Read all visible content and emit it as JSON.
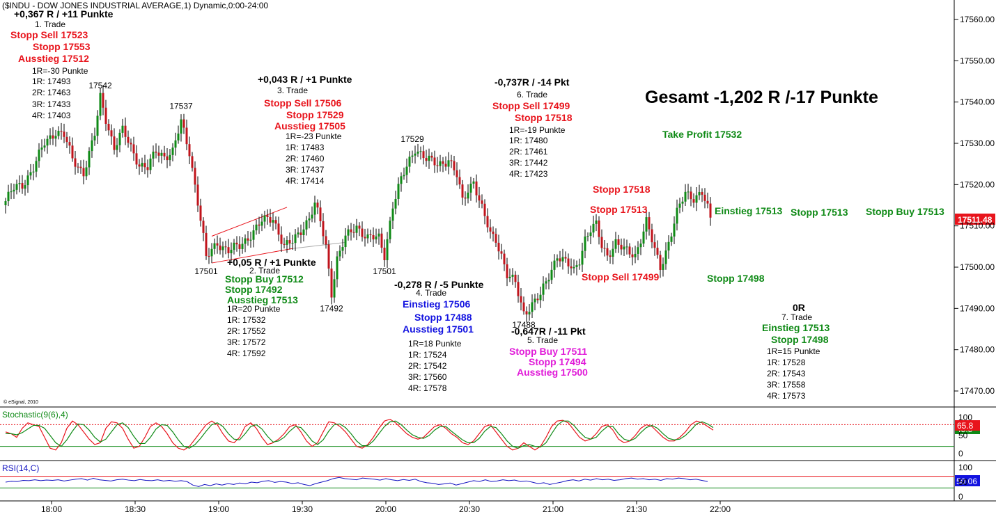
{
  "header": {
    "title": "($INDU - DOW JONES INDUSTRIAL AVERAGE,1) Dynamic,0:00-24:00"
  },
  "copyright": "© eSignal, 2010",
  "colors": {
    "up": "#0f8a16",
    "down": "#c0141c",
    "resistance": "#e8141c",
    "support": "#0f8a16",
    "stoch_k": "#e8141c",
    "stoch_d": "#0f8a16",
    "rsi": "#1212c0"
  },
  "total": "Gesamt -1,202 R /-17 Punkte",
  "trades": {
    "t1": {
      "result": "+0,367 R / +11 Punkte",
      "num": "1. Trade",
      "l1": "Stopp Sell 17523",
      "l2": "Stopp 17553",
      "l3": "Ausstieg 17512",
      "r1": "1R=-30 Punkte",
      "lv1": "1R: 17493",
      "lv2": "2R: 17463",
      "lv3": "3R: 17433",
      "lv4": "4R: 17403"
    },
    "t2": {
      "result": "+0,05 R / +1 Punkte",
      "num": "2. Trade",
      "l1": "Stopp Buy 17512",
      "l2": "Stopp 17492",
      "l3": "Ausstieg 17513",
      "r1": "1R=20 Punkte",
      "lv1": "1R: 17532",
      "lv2": "2R: 17552",
      "lv3": "3R: 17572",
      "lv4": "4R: 17592"
    },
    "t3": {
      "result": "+0,043 R / +1 Punkte",
      "num": "3. Trade",
      "l1": "Stopp Sell 17506",
      "l2": "Stopp 17529",
      "l3": "Ausstieg 17505",
      "r1": "1R=-23 Punkte",
      "lv1": "1R: 17483",
      "lv2": "2R: 17460",
      "lv3": "3R: 17437",
      "lv4": "4R: 17414"
    },
    "t4": {
      "result": "-0,278 R / -5 Punkte",
      "num": "4. Trade",
      "l1": "Einstieg 17506",
      "l2": "Stopp 17488",
      "l3": "Ausstieg 17501",
      "r1": "1R=18 Punkte",
      "lv1": "1R: 17524",
      "lv2": "2R: 17542",
      "lv3": "3R: 17560",
      "lv4": "4R: 17578"
    },
    "t5": {
      "result": "-0,647R / -11 Pkt",
      "num": "5. Trade",
      "l1": "Stopp Buy 17511",
      "l2": "Stopp 17494",
      "l3": "Ausstieg 17500"
    },
    "t6": {
      "result": "-0,737R / -14 Pkt",
      "num": "6. Trade",
      "l1": "Stopp Sell 17499",
      "l2": "Stopp 17518",
      "r1": "1R=-19 Punkte",
      "lv1": "1R: 17480",
      "lv2": "2R: 17461",
      "lv3": "3R: 17442",
      "lv4": "4R: 17423"
    },
    "t7": {
      "result": "0R",
      "num": "7. Trade",
      "l1": "Einstieg 17513",
      "l2": "Stopp 17498",
      "r1": "1R=15 Punkte",
      "lv1": "1R: 17528",
      "lv2": "2R: 17543",
      "lv3": "3R: 17558",
      "lv4": "4R: 17573"
    }
  },
  "right_labels": {
    "take_profit": "Take Profit 17532",
    "stopp_17518": "Stopp 17518",
    "stopp_17513": "Stopp 17513",
    "stopp_sell_17499": "Stopp Sell 17499",
    "einstieg_17513": "Einstieg 17513",
    "stopp_17513_b": "Stopp 17513",
    "stopp_buy_17513": "Stopp Buy 17513",
    "stopp_17498": "Stopp 17498"
  },
  "chart_data": [
    {
      "type": "candlestick",
      "title": "($INDU - DOW JONES INDUSTRIAL AVERAGE,1) Dynamic,0:00-24:00",
      "x_ticks": [
        "18:00",
        "18:30",
        "19:00",
        "19:30",
        "20:00",
        "20:30",
        "21:00",
        "21:30",
        "22:00"
      ],
      "y_ticks": [
        17560,
        17550,
        17540,
        17530,
        17520,
        17510,
        17500,
        17490,
        17480,
        17470
      ],
      "ylim": [
        17465,
        17563
      ],
      "last_price": "17511.48",
      "price_labels": [
        {
          "label": "17542",
          "x": 34,
          "y": 17542
        },
        {
          "label": "17537",
          "x": 63,
          "y": 17537
        },
        {
          "label": "17501",
          "x": 72,
          "y": 17501
        },
        {
          "label": "17492",
          "x": 117,
          "y": 17492
        },
        {
          "label": "17501",
          "x": 136,
          "y": 17501
        },
        {
          "label": "17529",
          "x": 146,
          "y": 17529
        },
        {
          "label": "17488",
          "x": 186,
          "y": 17488
        }
      ],
      "close_path": [
        [
          0,
          17516
        ],
        [
          3,
          17519
        ],
        [
          6,
          17520
        ],
        [
          10,
          17524
        ],
        [
          14,
          17530
        ],
        [
          18,
          17533
        ],
        [
          21,
          17532
        ],
        [
          24,
          17526
        ],
        [
          28,
          17523
        ],
        [
          32,
          17532
        ],
        [
          34,
          17541
        ],
        [
          36,
          17536
        ],
        [
          39,
          17529
        ],
        [
          42,
          17533
        ],
        [
          45,
          17529
        ],
        [
          48,
          17525
        ],
        [
          51,
          17524
        ],
        [
          54,
          17528
        ],
        [
          57,
          17527
        ],
        [
          60,
          17528
        ],
        [
          63,
          17535
        ],
        [
          66,
          17528
        ],
        [
          69,
          17516
        ],
        [
          71,
          17507
        ],
        [
          72,
          17502
        ],
        [
          76,
          17506
        ],
        [
          80,
          17504
        ],
        [
          84,
          17505
        ],
        [
          88,
          17508
        ],
        [
          92,
          17511
        ],
        [
          96,
          17512
        ],
        [
          100,
          17505
        ],
        [
          103,
          17506
        ],
        [
          106,
          17509
        ],
        [
          109,
          17512
        ],
        [
          111,
          17515
        ],
        [
          113,
          17511
        ],
        [
          115,
          17505
        ],
        [
          117,
          17494
        ],
        [
          119,
          17502
        ],
        [
          122,
          17507
        ],
        [
          126,
          17510
        ],
        [
          130,
          17507
        ],
        [
          134,
          17507
        ],
        [
          136,
          17503
        ],
        [
          139,
          17515
        ],
        [
          142,
          17521
        ],
        [
          145,
          17526
        ],
        [
          147,
          17529
        ],
        [
          151,
          17526
        ],
        [
          155,
          17525
        ],
        [
          159,
          17526
        ],
        [
          162,
          17522
        ],
        [
          164,
          17516
        ],
        [
          166,
          17519
        ],
        [
          168,
          17521
        ],
        [
          170,
          17516
        ],
        [
          172,
          17512
        ],
        [
          174,
          17508
        ],
        [
          176,
          17507
        ],
        [
          178,
          17503
        ],
        [
          180,
          17498
        ],
        [
          183,
          17496
        ],
        [
          186,
          17489
        ],
        [
          189,
          17491
        ],
        [
          192,
          17493
        ],
        [
          195,
          17498
        ],
        [
          198,
          17503
        ],
        [
          201,
          17501
        ],
        [
          204,
          17499
        ],
        [
          206,
          17502
        ],
        [
          208,
          17507
        ],
        [
          210,
          17509
        ],
        [
          212,
          17510
        ],
        [
          214,
          17505
        ],
        [
          216,
          17503
        ],
        [
          219,
          17506
        ],
        [
          222,
          17504
        ],
        [
          226,
          17503
        ],
        [
          228,
          17507
        ],
        [
          230,
          17511
        ],
        [
          233,
          17504
        ],
        [
          235,
          17500
        ],
        [
          238,
          17506
        ],
        [
          241,
          17513
        ],
        [
          244,
          17518
        ],
        [
          247,
          17517
        ],
        [
          250,
          17518
        ],
        [
          253,
          17512
        ]
      ],
      "trendlines": [
        {
          "name": "resistance",
          "from": [
            74,
            17507.5
          ],
          "to": [
            101,
            17514.5
          ]
        },
        {
          "name": "support",
          "from": [
            74,
            17501
          ],
          "to": [
            103,
            17504.5
          ]
        },
        {
          "name": "support-extension",
          "from": [
            103,
            17504.5
          ],
          "to": [
            122,
            17506
          ]
        }
      ]
    },
    {
      "type": "line",
      "title": "Stochastic(9(6),4)",
      "ylim": [
        0,
        100
      ],
      "y_ticks": [
        100,
        50,
        0
      ],
      "levels": [
        80,
        20
      ],
      "last_values": [
        "65.8",
        "45.5"
      ],
      "series": [
        {
          "name": "%K",
          "values": [
            60,
            55,
            45,
            70,
            85,
            80,
            75,
            45,
            15,
            10,
            30,
            70,
            90,
            80,
            60,
            40,
            25,
            30,
            70,
            88,
            85,
            70,
            40,
            15,
            20,
            45,
            75,
            85,
            75,
            55,
            30,
            15,
            10,
            20,
            40,
            60,
            80,
            90,
            80,
            55,
            35,
            30,
            45,
            75,
            85,
            70,
            45,
            25,
            30,
            40,
            55,
            75,
            80,
            60,
            35,
            20,
            30,
            60,
            88,
            85,
            75,
            60,
            40,
            20,
            15,
            25,
            45,
            70,
            90,
            95,
            85,
            70,
            55,
            45,
            40,
            45,
            60,
            75,
            80,
            70,
            55,
            45,
            30,
            25,
            35,
            55,
            75,
            80,
            60,
            40,
            20,
            10,
            15,
            30,
            20,
            10,
            20,
            45,
            75,
            90,
            92,
            85,
            65,
            45,
            35,
            40,
            55,
            75,
            80,
            65,
            40,
            30,
            35,
            50,
            70,
            80,
            75,
            60,
            45,
            35,
            35,
            45,
            60,
            80,
            90,
            85,
            75,
            65
          ]
        },
        {
          "name": "%D",
          "values": [
            55,
            55,
            52,
            58,
            68,
            78,
            78,
            70,
            50,
            30,
            20,
            38,
            62,
            82,
            80,
            65,
            45,
            32,
            40,
            60,
            80,
            85,
            72,
            48,
            28,
            28,
            45,
            68,
            80,
            78,
            60,
            38,
            20,
            15,
            25,
            42,
            62,
            80,
            85,
            75,
            55,
            40,
            38,
            55,
            75,
            80,
            68,
            48,
            32,
            35,
            45,
            62,
            75,
            72,
            55,
            35,
            25,
            38,
            62,
            80,
            82,
            72,
            55,
            35,
            22,
            22,
            35,
            55,
            75,
            88,
            90,
            80,
            65,
            52,
            45,
            42,
            50,
            65,
            75,
            75,
            62,
            50,
            38,
            30,
            30,
            42,
            62,
            75,
            72,
            55,
            35,
            20,
            15,
            22,
            25,
            20,
            18,
            30,
            55,
            78,
            90,
            90,
            78,
            60,
            45,
            40,
            45,
            62,
            75,
            75,
            55,
            40,
            35,
            42,
            58,
            72,
            78,
            70,
            55,
            42,
            38,
            40,
            50,
            65,
            82,
            88,
            82,
            72
          ]
        }
      ]
    },
    {
      "type": "line",
      "title": "RSI(14,C)",
      "ylim": [
        0,
        100
      ],
      "y_ticks": [
        100,
        50,
        0
      ],
      "levels": [
        70,
        30
      ],
      "last_values": [
        "50.06"
      ],
      "series": [
        {
          "name": "RSI",
          "values": [
            50,
            53,
            52,
            56,
            55,
            58,
            55,
            57,
            56,
            58,
            54,
            57,
            60,
            62,
            57,
            63,
            58,
            56,
            54,
            58,
            60,
            57,
            55,
            59,
            56,
            55,
            58,
            54,
            56,
            53,
            55,
            52,
            40,
            35,
            42,
            38,
            44,
            40,
            45,
            42,
            47,
            44,
            50,
            48,
            53,
            55,
            49,
            52,
            50,
            45,
            48,
            42,
            38,
            45,
            50,
            55,
            62,
            66,
            62,
            60,
            58,
            64,
            62,
            60,
            57,
            62,
            58,
            55,
            59,
            56,
            60,
            52,
            48,
            46,
            42,
            44,
            47,
            40,
            45,
            50,
            55,
            52,
            58,
            52,
            54,
            58,
            55,
            57,
            52,
            54,
            50,
            45,
            48,
            42,
            46,
            50,
            55,
            58,
            54,
            60,
            57,
            62,
            58,
            60,
            56,
            58,
            62,
            64,
            60,
            62,
            58,
            60,
            56,
            62,
            60,
            64,
            62,
            58,
            60,
            56,
            52
          ]
        }
      ]
    }
  ]
}
